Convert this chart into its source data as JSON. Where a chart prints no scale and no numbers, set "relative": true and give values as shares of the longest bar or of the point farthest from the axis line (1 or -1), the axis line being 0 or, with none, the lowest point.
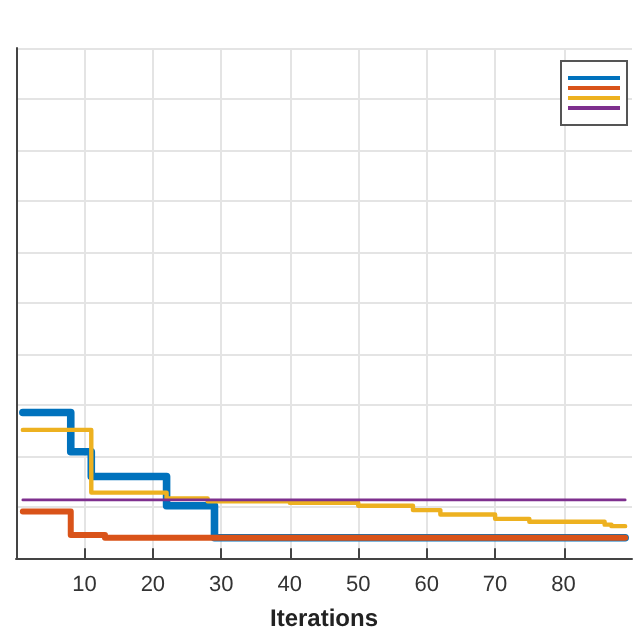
{
  "chart_data": {
    "type": "step",
    "xlabel": "Iterations",
    "relative": true,
    "xlim": [
      0,
      90
    ],
    "xticks": [
      10,
      20,
      30,
      40,
      50,
      60,
      70,
      80
    ],
    "grid": true,
    "tick_labels": "x",
    "line_style": "solid",
    "series": [
      {
        "color": "#0072bd",
        "x": [
          1,
          8,
          11,
          22,
          29,
          89
        ],
        "values": [
          1,
          0.73,
          0.56,
          0.36,
          0.14,
          0.14
        ]
      },
      {
        "color": "#d95319",
        "x": [
          1,
          8,
          13,
          89
        ],
        "values": [
          0.32,
          0.16,
          0.14,
          0.14
        ]
      },
      {
        "color": "#edb120",
        "x": [
          1,
          11,
          22,
          28,
          40,
          50,
          58,
          62,
          70,
          75,
          86,
          87,
          89
        ],
        "values": [
          0.88,
          0.45,
          0.41,
          0.39,
          0.38,
          0.36,
          0.33,
          0.3,
          0.27,
          0.25,
          0.23,
          0.22,
          0.22
        ]
      },
      {
        "color": "#7e2f8e",
        "x": [
          1,
          89
        ],
        "values": [
          0.4,
          0.4
        ]
      }
    ]
  }
}
